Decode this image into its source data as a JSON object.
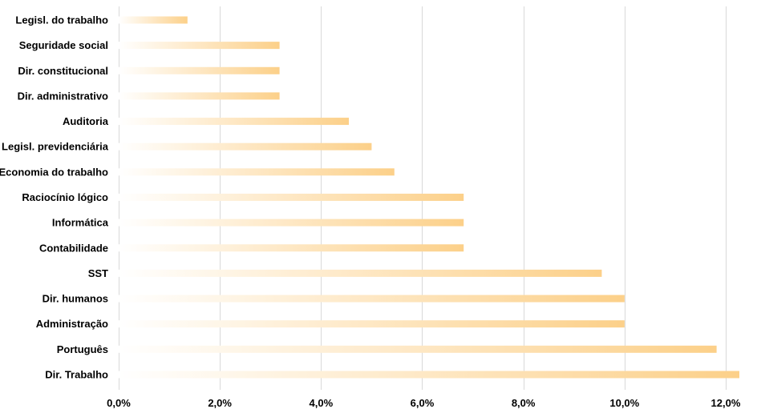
{
  "chart_data": {
    "type": "bar",
    "orientation": "horizontal",
    "title": "",
    "xlabel": "",
    "ylabel": "",
    "categories": [
      "Legisl. do trabalho",
      "Seguridade social",
      "Dir. constitucional",
      "Dir. administrativo",
      "Auditoria",
      "Legisl. previdenciária",
      "Economia do trabalho",
      "Raciocínio lógico",
      "Informática",
      "Contabilidade",
      "SST",
      "Dir. humanos",
      "Administração",
      "Português",
      "Dir. Trabalho"
    ],
    "values": [
      1.36,
      3.18,
      3.18,
      3.18,
      4.55,
      5.0,
      5.45,
      6.82,
      6.82,
      6.82,
      9.55,
      10.0,
      10.0,
      11.82,
      12.27
    ],
    "xlim": [
      0,
      12.27
    ],
    "x_ticks": [
      0,
      2,
      4,
      6,
      8,
      10,
      12
    ],
    "x_tick_labels": [
      "0,0%",
      "2,0%",
      "4,0%",
      "6,0%",
      "8,0%",
      "10,0%",
      "12,0%"
    ],
    "grid": "vertical",
    "legend": "none",
    "colors": {
      "bar_start": "#ffffff",
      "bar_end": "#fcd089",
      "grid": "#d9d9d9",
      "text": "#000000"
    }
  }
}
